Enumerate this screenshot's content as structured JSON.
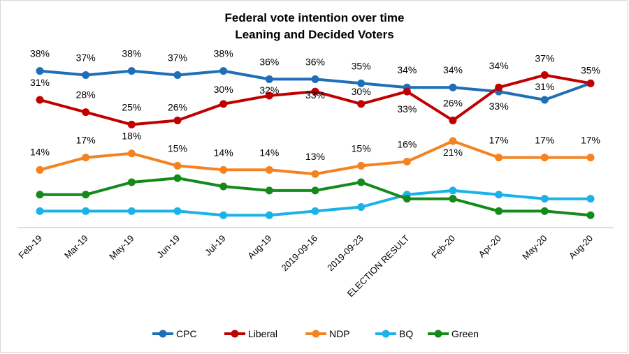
{
  "chart_data": {
    "type": "line",
    "title": "Federal vote intention over time",
    "subtitle": "Leaning and Decided Voters",
    "xlabel": "",
    "ylabel": "",
    "ylim": [
      0,
      42
    ],
    "grid": false,
    "legend_position": "bottom",
    "categories": [
      "Feb-19",
      "Mar-19",
      "May-19",
      "Jun-19",
      "Jul-19",
      "Aug-19",
      "2019-09-16",
      "2019-09-23",
      "ELECTION RESULT",
      "Feb-20",
      "Apr-20",
      "May-20",
      "Aug-20"
    ],
    "series": [
      {
        "name": "CPC",
        "color": "#1f6eb8",
        "values": [
          38,
          37,
          38,
          37,
          38,
          36,
          36,
          35,
          34,
          34,
          33,
          31,
          35
        ],
        "labels": [
          "38%",
          "37%",
          "38%",
          "37%",
          "38%",
          "36%",
          "36%",
          "35%",
          "34%",
          "34%",
          "33%",
          "31%",
          ""
        ]
      },
      {
        "name": "Liberal",
        "color": "#c00000",
        "values": [
          31,
          28,
          25,
          26,
          30,
          32,
          33,
          30,
          33,
          26,
          34,
          37,
          35
        ],
        "labels": [
          "31%",
          "28%",
          "25%",
          "26%",
          "30%",
          "32%",
          "33%",
          "30%",
          "33%",
          "26%",
          "34%",
          "37%",
          "35%"
        ]
      },
      {
        "name": "NDP",
        "color": "#f58220",
        "values": [
          14,
          17,
          18,
          15,
          14,
          14,
          13,
          15,
          16,
          21,
          17,
          17,
          17
        ],
        "labels": [
          "14%",
          "17%",
          "18%",
          "15%",
          "14%",
          "14%",
          "13%",
          "15%",
          "16%",
          "21%",
          "17%",
          "17%",
          "17%"
        ]
      },
      {
        "name": "BQ",
        "color": "#1ab2e8",
        "values": [
          4,
          4,
          4,
          4,
          3,
          3,
          4,
          5,
          8,
          9,
          8,
          7,
          7
        ],
        "labels": []
      },
      {
        "name": "Green",
        "color": "#138a1a",
        "values": [
          8,
          8,
          11,
          12,
          10,
          9,
          9,
          11,
          7,
          7,
          4,
          4,
          3
        ],
        "labels": []
      }
    ]
  }
}
